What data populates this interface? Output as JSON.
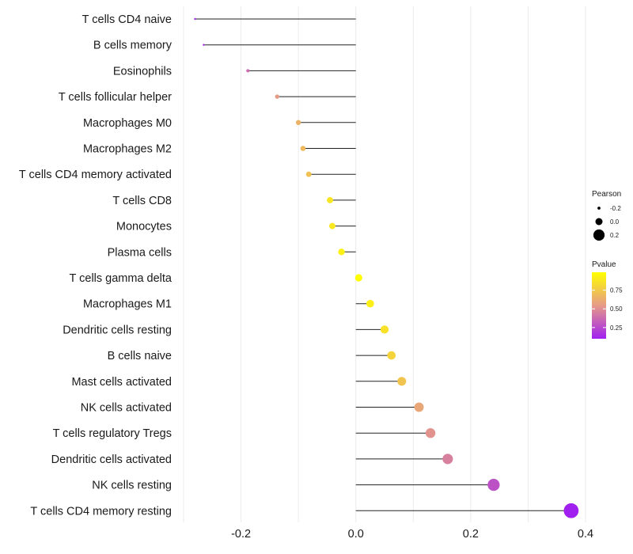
{
  "chart_data": {
    "type": "lollipop",
    "title": "",
    "xlabel": "",
    "ylabel": "",
    "xlim": [
      -0.3,
      0.4
    ],
    "x_ticks": [
      -0.2,
      0.0,
      0.2,
      0.4
    ],
    "x_tick_labels": [
      "-0.2",
      "0.0",
      "0.2",
      "0.4"
    ],
    "grid": true,
    "points": [
      {
        "cell_type": "T cells CD4 naive",
        "correlation": -0.28,
        "pvalue": 0.08
      },
      {
        "cell_type": "B cells memory",
        "correlation": -0.265,
        "pvalue": 0.12
      },
      {
        "cell_type": "Eosinophils",
        "correlation": -0.188,
        "pvalue": 0.38
      },
      {
        "cell_type": "T cells follicular helper",
        "correlation": -0.137,
        "pvalue": 0.55
      },
      {
        "cell_type": "Macrophages M0",
        "correlation": -0.1,
        "pvalue": 0.65
      },
      {
        "cell_type": "Macrophages M2",
        "correlation": -0.092,
        "pvalue": 0.68
      },
      {
        "cell_type": "T cells CD4 memory activated",
        "correlation": -0.082,
        "pvalue": 0.72
      },
      {
        "cell_type": "T cells CD8",
        "correlation": -0.045,
        "pvalue": 0.88
      },
      {
        "cell_type": "Monocytes",
        "correlation": -0.041,
        "pvalue": 0.89
      },
      {
        "cell_type": "Plasma cells",
        "correlation": -0.025,
        "pvalue": 0.93
      },
      {
        "cell_type": "T cells gamma delta",
        "correlation": 0.005,
        "pvalue": 0.99
      },
      {
        "cell_type": "Macrophages M1",
        "correlation": 0.025,
        "pvalue": 0.92
      },
      {
        "cell_type": "Dendritic cells resting",
        "correlation": 0.05,
        "pvalue": 0.86
      },
      {
        "cell_type": "B cells naive",
        "correlation": 0.062,
        "pvalue": 0.8
      },
      {
        "cell_type": "Mast cells activated",
        "correlation": 0.08,
        "pvalue": 0.73
      },
      {
        "cell_type": "NK cells activated",
        "correlation": 0.11,
        "pvalue": 0.6
      },
      {
        "cell_type": "T cells regulatory  Tregs ",
        "correlation": 0.13,
        "pvalue": 0.52
      },
      {
        "cell_type": "Dendritic cells activated",
        "correlation": 0.16,
        "pvalue": 0.45
      },
      {
        "cell_type": "NK cells resting",
        "correlation": 0.24,
        "pvalue": 0.28
      },
      {
        "cell_type": "T cells CD4 memory resting",
        "correlation": 0.375,
        "pvalue": 0.07
      }
    ],
    "legend": {
      "placement": "right",
      "size": {
        "title": "Pearson",
        "entries": [
          {
            "label": "-0.2",
            "value": -0.2
          },
          {
            "label": "0.0",
            "value": 0.0
          },
          {
            "label": "0.2",
            "value": 0.2
          }
        ]
      },
      "color": {
        "title": "Pvalue",
        "range": [
          0.1,
          0.99
        ],
        "ticks": [
          {
            "label": "0.75",
            "value": 0.75
          },
          {
            "label": "0.50",
            "value": 0.5
          },
          {
            "label": "0.25",
            "value": 0.25
          }
        ],
        "low_color": "#a020f0",
        "mid_color": "#e69a88",
        "high_color": "#ffff00"
      }
    }
  }
}
